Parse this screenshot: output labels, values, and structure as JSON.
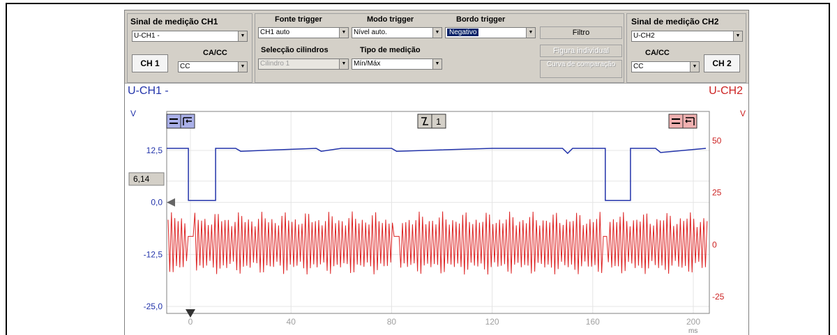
{
  "ch1_panel": {
    "title": "Sinal de medição CH1",
    "signal_value": "U-CH1 -",
    "tab_label": "CH 1",
    "acdc_label": "CA/CC",
    "acdc_value": "CC"
  },
  "trigger": {
    "source_label": "Fonte trigger",
    "source_value": "CH1 auto",
    "mode_label": "Modo trigger",
    "mode_value": "Nível auto.",
    "edge_label": "Bordo trigger",
    "edge_value": "Negativo",
    "cyl_label": "Selecção cilindros",
    "cyl_value": "Cilindro 1",
    "meas_label": "Tipo de medição",
    "meas_value": "Mín/Máx"
  },
  "buttons": {
    "filter": "Filtro",
    "single_figure": "Figura individual",
    "compare_curve": "Curva de comparação"
  },
  "ch2_panel": {
    "title": "Sinal de medição CH2",
    "signal_value": "U-CH2",
    "acdc_label": "CA/CC",
    "acdc_value": "CC",
    "tab_label": "CH 2"
  },
  "display": {
    "ch1_title": "U-CH1 -",
    "ch2_title": "U-CH2",
    "left_unit": "V",
    "right_unit": "V",
    "cursor_value": "6,14",
    "trigger_number": "1",
    "x_unit": "ms"
  },
  "chart_data": {
    "type": "line",
    "x_ticks": [
      0,
      40,
      80,
      120,
      160,
      200
    ],
    "xlim": [
      0,
      200
    ],
    "y_left_ticks": [
      "12,5",
      "0,0",
      "-12,5",
      "-25,0"
    ],
    "y_left_range": [
      -25,
      20
    ],
    "y_right_ticks": [
      "50",
      "25",
      "0",
      "-25"
    ],
    "y_right_range": [
      -30,
      60
    ],
    "trigger_level_v": 6.14,
    "series": [
      {
        "color": "#2233aa",
        "axis": "left",
        "x": [
          -10,
          -0.8,
          -0.8,
          0,
          10,
          10,
          11,
          18,
          20,
          50,
          52,
          60,
          80,
          82,
          120,
          148,
          150,
          152,
          165,
          165,
          175,
          175,
          185,
          187,
          205
        ],
        "y": [
          13,
          13,
          0.5,
          0.5,
          0.5,
          13,
          13,
          13,
          12.3,
          13,
          12.3,
          13,
          13,
          12.3,
          13,
          13,
          11.8,
          13,
          13,
          0.5,
          0.5,
          13,
          13,
          12,
          13
        ]
      },
      {
        "color": "#dd2222",
        "axis": "right",
        "kind": "oscillation",
        "x_start": -10,
        "x_end": 205,
        "center": 0,
        "amplitude_min": 8,
        "amplitude_max": 16,
        "gaps_at": [
          0,
          82,
          165
        ]
      }
    ]
  },
  "colors": {
    "ch1": "#2233aa",
    "ch2": "#dd2222",
    "ch1_btn_bg": "#aab0e8",
    "ch2_btn_bg": "#f0b0b0"
  }
}
